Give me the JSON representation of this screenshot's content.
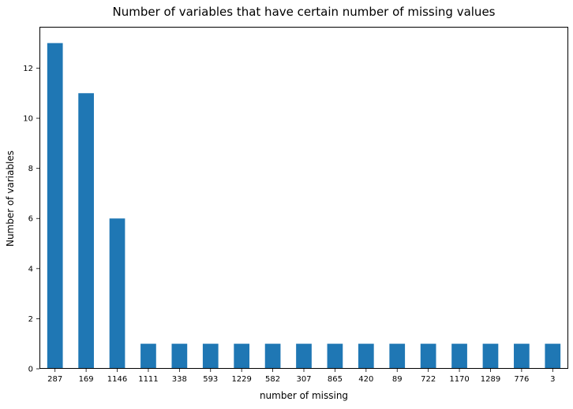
{
  "chart_data": {
    "type": "bar",
    "title": "Number of variables that have certain number of missing values",
    "xlabel": "number of missing",
    "ylabel": "Number of variables",
    "categories": [
      "287",
      "169",
      "1146",
      "1111",
      "338",
      "593",
      "1229",
      "582",
      "307",
      "865",
      "420",
      "89",
      "722",
      "1170",
      "1289",
      "776",
      "3"
    ],
    "values": [
      13,
      11,
      6,
      1,
      1,
      1,
      1,
      1,
      1,
      1,
      1,
      1,
      1,
      1,
      1,
      1,
      1
    ],
    "ylim": [
      0,
      13.65
    ],
    "yticks": [
      0,
      2,
      4,
      6,
      8,
      10,
      12
    ],
    "grid": false,
    "legend": "none",
    "bar_color": "#1f77b4"
  }
}
